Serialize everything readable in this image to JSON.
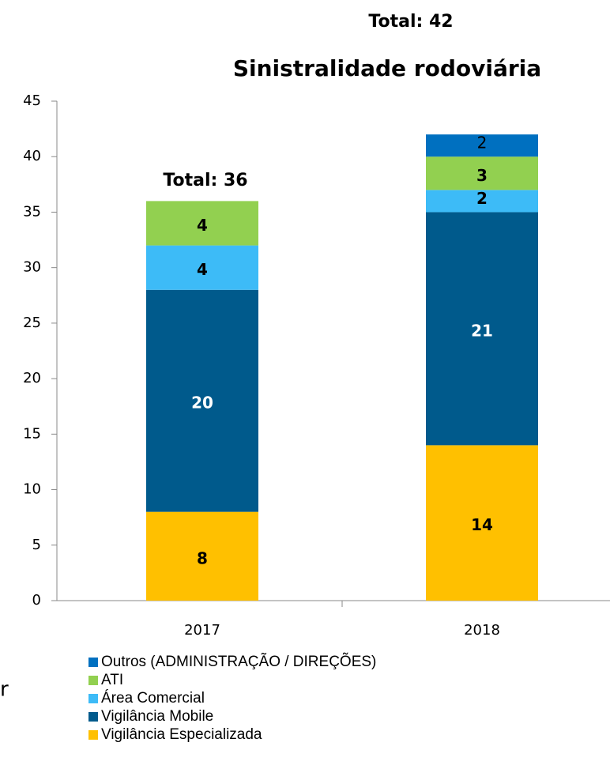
{
  "chart_data": {
    "type": "stacked_bar",
    "title": "Sinistralidade rodoviária",
    "categories": [
      "2017",
      "2018"
    ],
    "totals": [
      "Total: 36",
      "Total: 42"
    ],
    "fragment_text": "r",
    "series": [
      {
        "name": "Vigilância Especializada",
        "color": "#ffc000",
        "label_color": "#000000",
        "values": [
          8,
          14
        ]
      },
      {
        "name": "Vigilância Mobile",
        "color": "#005a8c",
        "label_color": "#ffffff",
        "values": [
          20,
          21
        ]
      },
      {
        "name": "Área Comercial",
        "color": "#3dbbf7",
        "label_color": "#000000",
        "values": [
          4,
          2
        ]
      },
      {
        "name": "ATI",
        "color": "#92d050",
        "label_color": "#000000",
        "values": [
          4,
          3
        ]
      },
      {
        "name": "Outros (ADMINISTRAÇÃO / DIREÇÕES)",
        "color": "#0070c0",
        "label_color": "#000000",
        "values": [
          null,
          2
        ]
      }
    ],
    "ylim": [
      0,
      45
    ],
    "yticks": [
      0,
      5,
      10,
      15,
      20,
      25,
      30,
      35,
      40,
      45
    ]
  }
}
